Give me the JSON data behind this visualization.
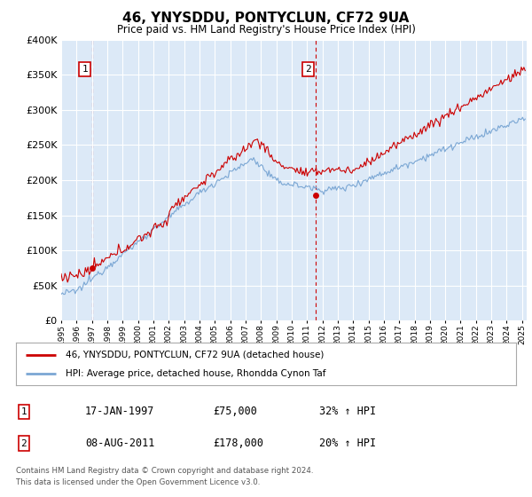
{
  "title": "46, YNYSDDU, PONTYCLUN, CF72 9UA",
  "subtitle": "Price paid vs. HM Land Registry's House Price Index (HPI)",
  "ylim": [
    0,
    400000
  ],
  "yticks": [
    0,
    50000,
    100000,
    150000,
    200000,
    250000,
    300000,
    350000,
    400000
  ],
  "xlim_start": 1995.0,
  "xlim_end": 2025.3,
  "plot_bg_color": "#dce9f7",
  "fig_bg_color": "#ffffff",
  "red_line_color": "#cc0000",
  "blue_line_color": "#7ba7d4",
  "transaction1": {
    "date_num": 1997.046,
    "price": 75000,
    "label": "1",
    "date_str": "17-JAN-1997",
    "price_str": "£75,000",
    "pct": "32% ↑ HPI"
  },
  "transaction2": {
    "date_num": 2011.586,
    "price": 178000,
    "label": "2",
    "date_str": "08-AUG-2011",
    "price_str": "£178,000",
    "pct": "20% ↑ HPI"
  },
  "legend_line1": "46, YNYSDDU, PONTYCLUN, CF72 9UA (detached house)",
  "legend_line2": "HPI: Average price, detached house, Rhondda Cynon Taf",
  "footer1": "Contains HM Land Registry data © Crown copyright and database right 2024.",
  "footer2": "This data is licensed under the Open Government Licence v3.0."
}
